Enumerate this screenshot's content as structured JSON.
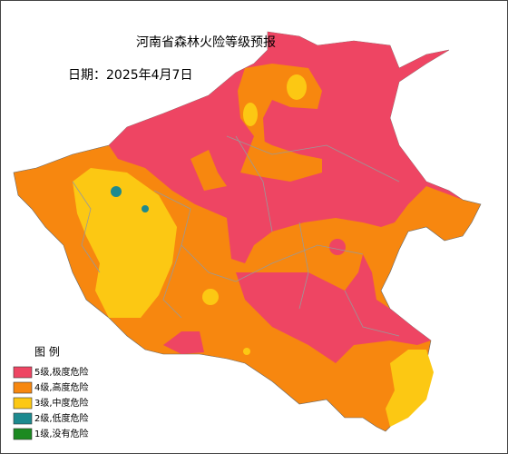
{
  "header": {
    "title": "河南省森林火险等级预报",
    "date": "日期：2025年4月7日"
  },
  "legend": {
    "title": "图  例",
    "items": [
      {
        "label": "5级,极度危险",
        "color": "#ee4563"
      },
      {
        "label": "4级,高度危险",
        "color": "#f7870f"
      },
      {
        "label": "3级,中度危险",
        "color": "#fcc813"
      },
      {
        "label": "2级,低度危险",
        "color": "#1d8a8f"
      },
      {
        "label": "1级,没有危险",
        "color": "#1c8a21"
      }
    ]
  }
}
